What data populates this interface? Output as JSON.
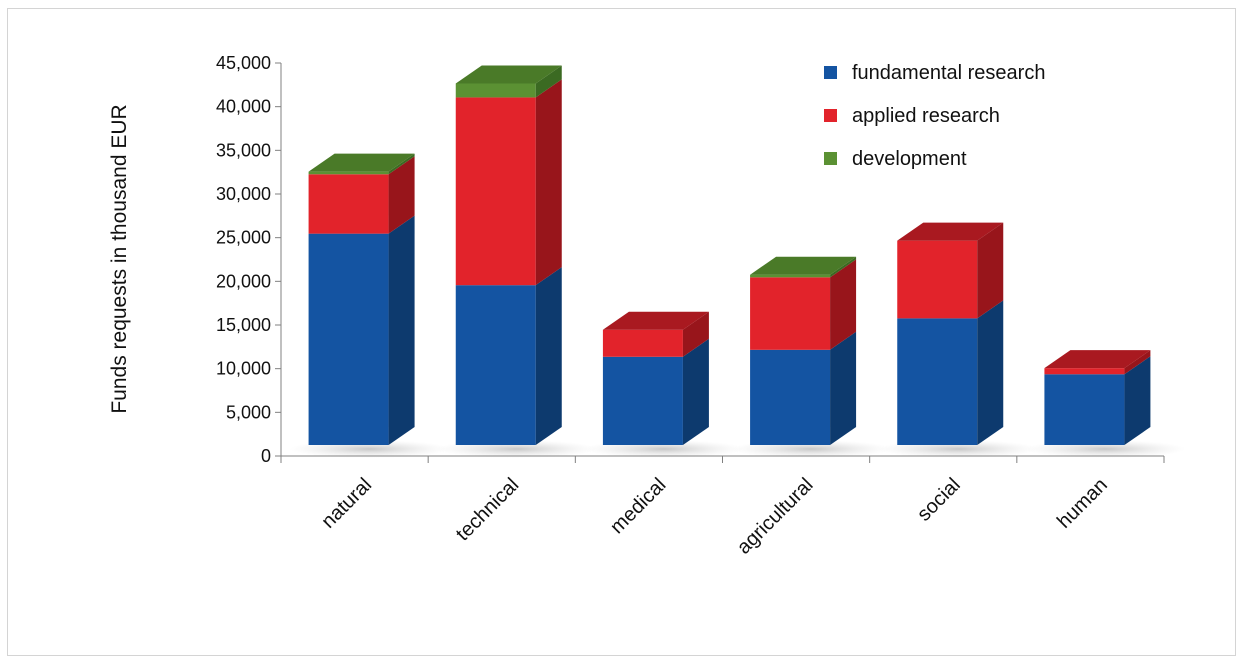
{
  "chart_data": {
    "type": "bar",
    "stacked": true,
    "three_d": true,
    "ylabel": "Funds requests in thousand EUR",
    "xlabel": "",
    "ylim": [
      0,
      45000
    ],
    "y_ticks": [
      "0",
      "5,000",
      "10,000",
      "15,000",
      "20,000",
      "25,000",
      "30,000",
      "35,000",
      "40,000",
      "45,000"
    ],
    "y_tick_values": [
      0,
      5000,
      10000,
      15000,
      20000,
      25000,
      30000,
      35000,
      40000,
      45000
    ],
    "grid": false,
    "legend_position": "top-right",
    "categories": [
      "natural",
      "technical",
      "medical",
      "agricultural",
      "social",
      "human"
    ],
    "series": [
      {
        "name": "fundamental research",
        "values": [
          24200,
          18300,
          10100,
          10900,
          14500,
          8100
        ],
        "color": "#1454a2",
        "side_color": "#0d3a6e",
        "top_color": "#0f447f"
      },
      {
        "name": "applied research",
        "values": [
          6800,
          21500,
          3100,
          8300,
          8900,
          700
        ],
        "color": "#e2232b",
        "side_color": "#98151b",
        "top_color": "#a91920"
      },
      {
        "name": "development",
        "values": [
          300,
          1600,
          0,
          300,
          0,
          0
        ],
        "color": "#5b9133",
        "side_color": "#3b6a22",
        "top_color": "#4a7a28"
      }
    ]
  }
}
